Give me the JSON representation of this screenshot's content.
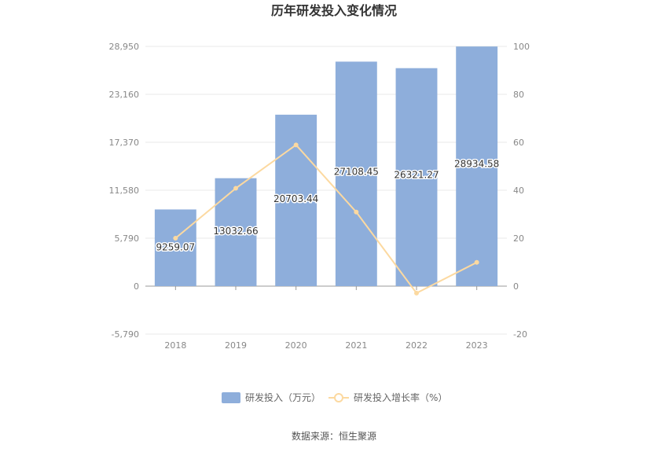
{
  "title": "历年研发投入变化情况",
  "source": "数据来源：恒生聚源",
  "colors": {
    "bar": "#8eaedb",
    "line": "#fcd9a0",
    "grid": "#e8e8e8",
    "axis": "#999999"
  },
  "chart_data": {
    "type": "bar",
    "categories": [
      "2018",
      "2019",
      "2020",
      "2021",
      "2022",
      "2023"
    ],
    "series": [
      {
        "name": "研发投入（万元）",
        "type": "bar",
        "axis": "left",
        "values": [
          9259.07,
          13032.66,
          20703.44,
          27108.45,
          26321.27,
          28934.58
        ],
        "labels": [
          "9259.07",
          "13032.66",
          "20703.44",
          "27108.45",
          "26321.27",
          "28934.58"
        ]
      },
      {
        "name": "研发投入增长率（%）",
        "type": "line",
        "axis": "right",
        "values": [
          20,
          40.8,
          58.9,
          30.9,
          -2.9,
          9.9
        ]
      }
    ],
    "y_left": {
      "min": -5790,
      "max": 28950,
      "ticks": [
        -5790,
        0,
        5790,
        11580,
        17370,
        23160,
        28950
      ],
      "tick_labels": [
        "-5,790",
        "0",
        "5,790",
        "11,580",
        "17,370",
        "23,160",
        "28,950"
      ]
    },
    "y_right": {
      "min": -20,
      "max": 100,
      "ticks": [
        -20,
        0,
        20,
        40,
        60,
        80,
        100
      ],
      "tick_labels": [
        "-20",
        "0",
        "20",
        "40",
        "60",
        "80",
        "100"
      ]
    },
    "grid": true,
    "legend_position": "bottom"
  }
}
